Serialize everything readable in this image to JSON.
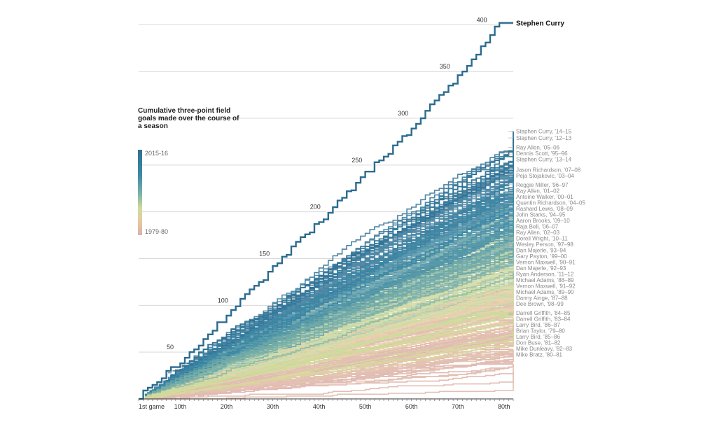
{
  "chart_data": {
    "type": "line",
    "title": "Cumulative three-point field goals made over the course of a season",
    "xlabel": "",
    "ylabel": "",
    "xlim": [
      1,
      82
    ],
    "ylim": [
      0,
      410
    ],
    "x_ticks": [
      {
        "game": 1,
        "label": "1st game"
      },
      {
        "game": 10,
        "label": "10th"
      },
      {
        "game": 20,
        "label": "20th"
      },
      {
        "game": 30,
        "label": "30th"
      },
      {
        "game": 40,
        "label": "40th"
      },
      {
        "game": 50,
        "label": "50th"
      },
      {
        "game": 60,
        "label": "60th"
      },
      {
        "game": 70,
        "label": "70th"
      },
      {
        "game": 80,
        "label": "80th"
      }
    ],
    "y_gridlines": [
      50,
      100,
      150,
      200,
      250,
      300,
      350,
      400
    ],
    "legend": {
      "top_label": "2015-16",
      "bottom_label": "1979-80",
      "colors": [
        "#2f6e93",
        "#7fb2a6",
        "#cddc9c",
        "#e6cc9e",
        "#dcb0a8"
      ]
    },
    "highlight": {
      "name": "Stephen Curry",
      "season": "2015-16",
      "total": 402,
      "checkpoints": [
        [
          1,
          5
        ],
        [
          10,
          40
        ],
        [
          20,
          90
        ],
        [
          30,
          140
        ],
        [
          40,
          190
        ],
        [
          50,
          240
        ],
        [
          60,
          290
        ],
        [
          70,
          345
        ],
        [
          79,
          402
        ]
      ]
    },
    "series": [
      {
        "name": "Stephen Curry, '14–15",
        "total": 286
      },
      {
        "name": "Stephen Curry, '12–13",
        "total": 279
      },
      {
        "name": "Ray Allen, '05–06",
        "total": 269
      },
      {
        "name": "Dennis Scott, '95–96",
        "total": 266
      },
      {
        "name": "Stephen Curry, '13–14",
        "total": 261
      },
      {
        "name": "Jason Richardson, '07–08",
        "total": 245
      },
      {
        "name": "Peja Stojakovic, '03–04",
        "total": 240
      },
      {
        "name": "Reggie Miller, '96–97",
        "total": 229
      },
      {
        "name": "Ray Allen, '01–02",
        "total": 229
      },
      {
        "name": "Antoine Walker, '00–01",
        "total": 221
      },
      {
        "name": "Quentin Richardson, '04–05",
        "total": 226
      },
      {
        "name": "Rashard Lewis, '08–09",
        "total": 220
      },
      {
        "name": "John Starks, '94–95",
        "total": 217
      },
      {
        "name": "Aaron Brooks, '09–10",
        "total": 209
      },
      {
        "name": "Raja Bell, '06–07",
        "total": 205
      },
      {
        "name": "Ray Allen, '02–03",
        "total": 201
      },
      {
        "name": "Dorell Wright, '10–11",
        "total": 194
      },
      {
        "name": "Wesley Person, '97–98",
        "total": 192
      },
      {
        "name": "Dan Majerle, '93–94",
        "total": 192
      },
      {
        "name": "Gary Payton, '99–00",
        "total": 177
      },
      {
        "name": "Vernon Maxwell, '90–91",
        "total": 172
      },
      {
        "name": "Dan Majerle, '92–93",
        "total": 167
      },
      {
        "name": "Ryan Anderson, '11–12",
        "total": 166
      },
      {
        "name": "Michael Adams, '88–89",
        "total": 166
      },
      {
        "name": "Vernon Maxwell, '91–92",
        "total": 162
      },
      {
        "name": "Michael Adams, '89–90",
        "total": 158
      },
      {
        "name": "Danny Ainge, '87–88",
        "total": 148
      },
      {
        "name": "Dee Brown, '98–99",
        "total": 135
      },
      {
        "name": "Darrell Griffith, '84–85",
        "total": 92
      },
      {
        "name": "Darrell Griffith, '83–84",
        "total": 91
      },
      {
        "name": "Larry Bird, '86–87",
        "total": 90
      },
      {
        "name": "Brian Taylor, '79–80",
        "total": 90
      },
      {
        "name": "Larry Bird, '85–86",
        "total": 82
      },
      {
        "name": "Don Buse, '81–82",
        "total": 73
      },
      {
        "name": "Mike Dunleavy, '82–83",
        "total": 67
      },
      {
        "name": "Mike Bratz, '80–81",
        "total": 57
      }
    ]
  }
}
